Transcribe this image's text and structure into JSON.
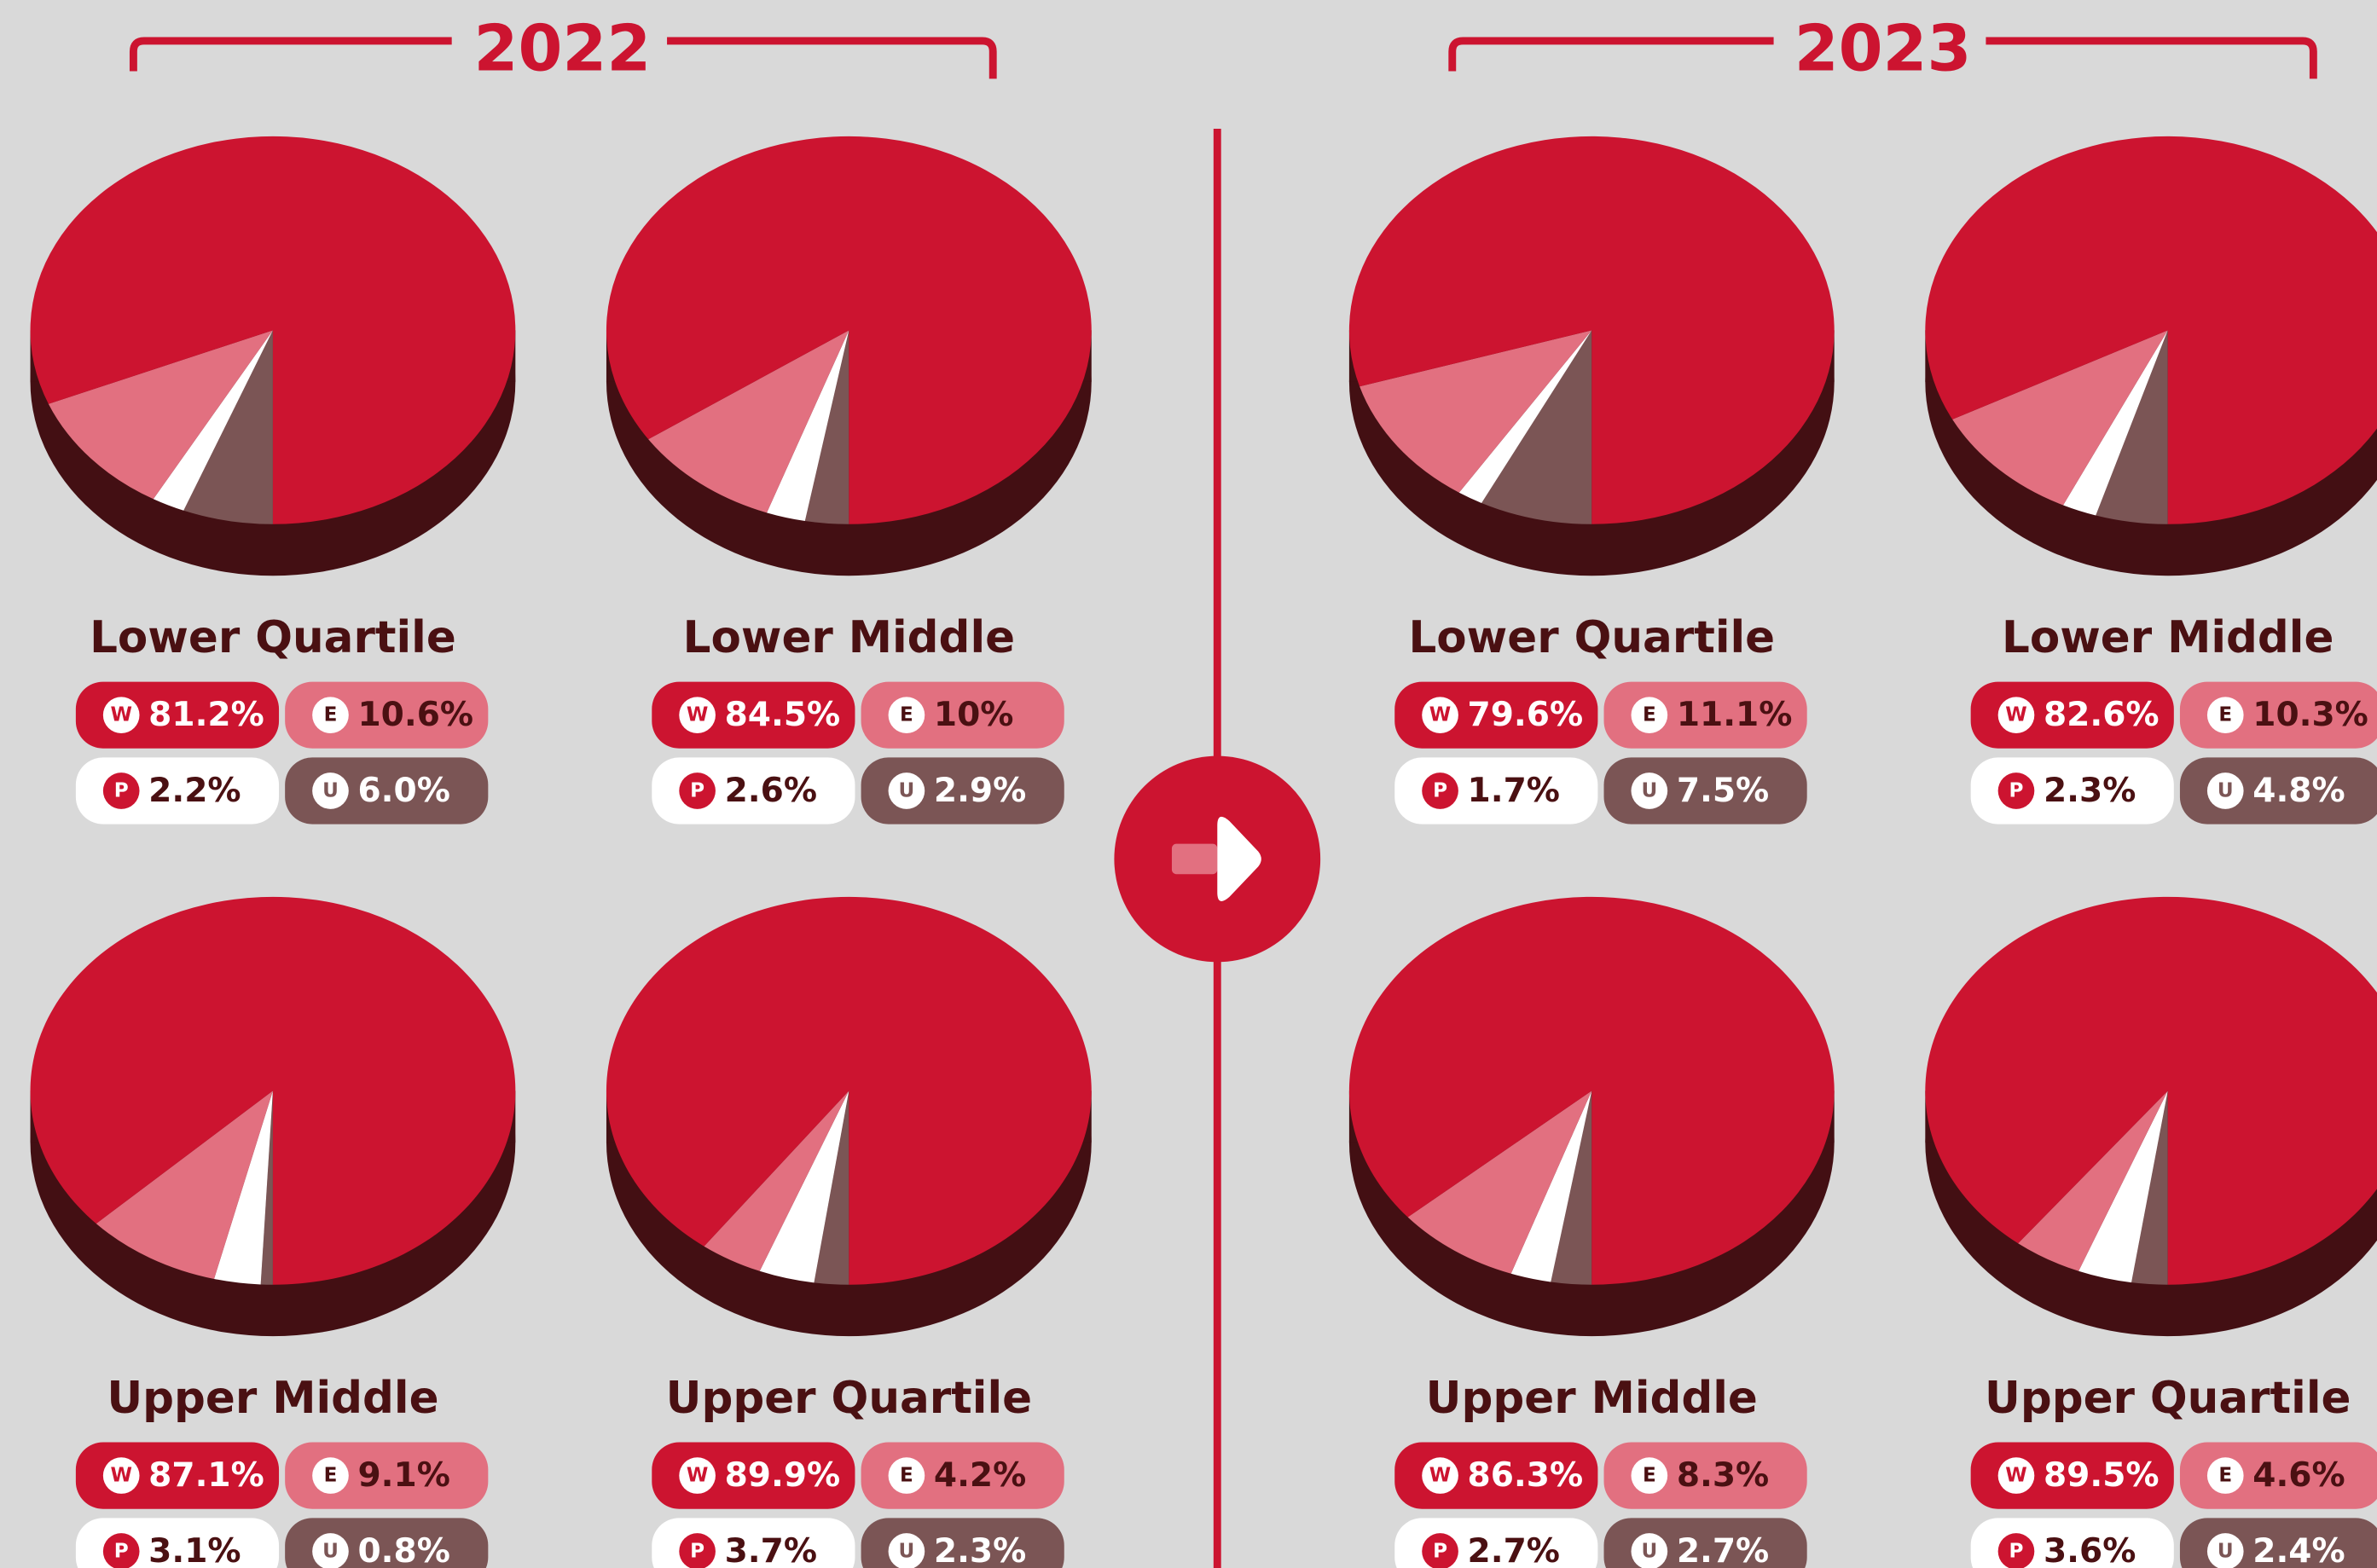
{
  "years": [
    "2022",
    "2023"
  ],
  "chart_data": [
    {
      "type": "pie",
      "title": "Lower Quartile",
      "categories": [
        "W",
        "E",
        "P",
        "U"
      ],
      "values": [
        81.2,
        10.6,
        2.2,
        6.0
      ],
      "value_labels": [
        "81.2%",
        "10.6%",
        "2.2%",
        "6.0%"
      ],
      "colors": [
        "#cc1430",
        "#e27080",
        "#ffffff",
        "#7b5555"
      ]
    },
    {
      "type": "pie",
      "title": "Lower Middle",
      "categories": [
        "W",
        "E",
        "P",
        "U"
      ],
      "values": [
        84.5,
        10,
        2.6,
        2.9
      ],
      "value_labels": [
        "84.5%",
        "10%",
        "2.6%",
        "2.9%"
      ],
      "colors": [
        "#cc1430",
        "#e27080",
        "#ffffff",
        "#7b5555"
      ]
    },
    {
      "type": "pie",
      "title": "Upper Middle",
      "categories": [
        "W",
        "E",
        "P",
        "U"
      ],
      "values": [
        87.1,
        9.1,
        3.1,
        0.8
      ],
      "value_labels": [
        "87.1%",
        "9.1%",
        "3.1%",
        "0.8%"
      ],
      "colors": [
        "#cc1430",
        "#e27080",
        "#ffffff",
        "#7b5555"
      ]
    },
    {
      "type": "pie",
      "title": "Upper Quartile",
      "categories": [
        "W",
        "E",
        "P",
        "U"
      ],
      "values": [
        89.9,
        4.2,
        3.7,
        2.3
      ],
      "value_labels": [
        "89.9%",
        "4.2%",
        "3.7%",
        "2.3%"
      ],
      "colors": [
        "#cc1430",
        "#e27080",
        "#ffffff",
        "#7b5555"
      ]
    },
    {
      "type": "pie",
      "title": "Lower Quartile",
      "categories": [
        "W",
        "E",
        "P",
        "U"
      ],
      "values": [
        79.6,
        11.1,
        1.7,
        7.5
      ],
      "value_labels": [
        "79.6%",
        "11.1%",
        "1.7%",
        "7.5%"
      ],
      "colors": [
        "#cc1430",
        "#e27080",
        "#ffffff",
        "#7b5555"
      ]
    },
    {
      "type": "pie",
      "title": "Lower Middle",
      "categories": [
        "W",
        "E",
        "P",
        "U"
      ],
      "values": [
        82.6,
        10.3,
        2.3,
        4.8
      ],
      "value_labels": [
        "82.6%",
        "10.3%",
        "2.3%",
        "4.8%"
      ],
      "colors": [
        "#cc1430",
        "#e27080",
        "#ffffff",
        "#7b5555"
      ]
    },
    {
      "type": "pie",
      "title": "Upper Middle",
      "categories": [
        "W",
        "E",
        "P",
        "U"
      ],
      "values": [
        86.3,
        8.3,
        2.7,
        2.7
      ],
      "value_labels": [
        "86.3%",
        "8.3%",
        "2.7%",
        "2.7%"
      ],
      "colors": [
        "#cc1430",
        "#e27080",
        "#ffffff",
        "#7b5555"
      ]
    },
    {
      "type": "pie",
      "title": "Upper Quartile",
      "categories": [
        "W",
        "E",
        "P",
        "U"
      ],
      "values": [
        89.5,
        4.6,
        3.6,
        2.4
      ],
      "value_labels": [
        "89.5%",
        "4.6%",
        "3.6%",
        "2.4%"
      ],
      "colors": [
        "#cc1430",
        "#e27080",
        "#ffffff",
        "#7b5555"
      ]
    }
  ]
}
